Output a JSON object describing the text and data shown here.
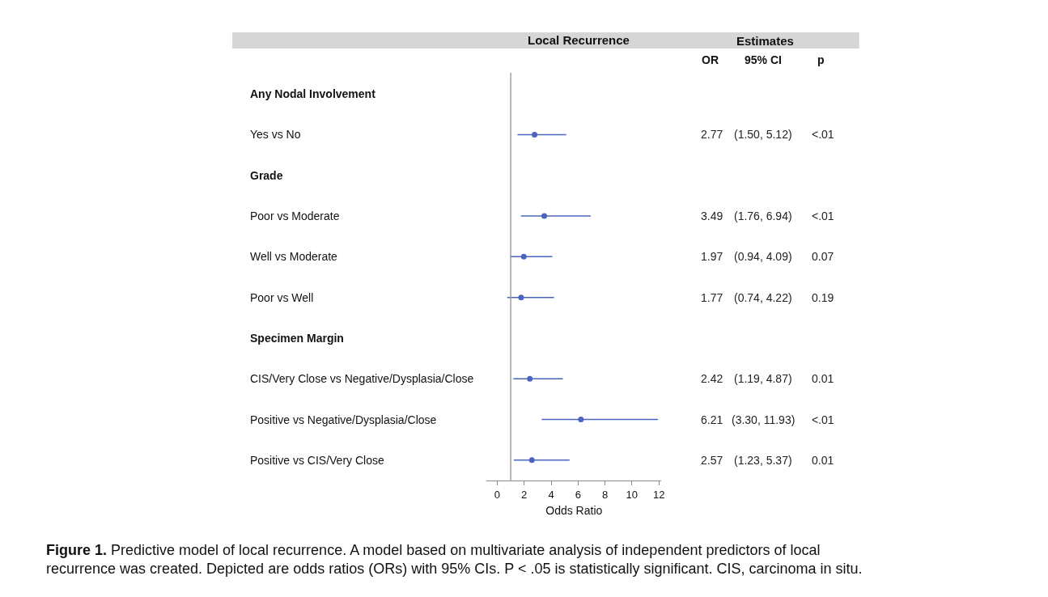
{
  "chart_data": {
    "type": "scatter",
    "orientation": "horizontal",
    "title": "Local Recurrence",
    "xlabel": "Odds Ratio",
    "categories": [
      "Any Nodal Involvement",
      "Yes vs No",
      "Grade",
      "Poor vs Moderate",
      "Well vs Moderate",
      "Poor vs Well",
      "Specimen Margin",
      "CIS/Very Close vs Negative/Dysplasia/Close",
      "Positive vs Negative/Dysplasia/Close",
      "Positive vs CIS/Very Close"
    ],
    "series": [
      {
        "color": "#4a64c0",
        "values": [
          null,
          2.77,
          null,
          3.49,
          1.97,
          1.77,
          null,
          2.42,
          6.21,
          2.57
        ],
        "errors": [
          null,
          [
            1.5,
            5.12
          ],
          null,
          [
            1.76,
            6.94
          ],
          [
            0.94,
            4.09
          ],
          [
            0.74,
            4.22
          ],
          null,
          [
            1.19,
            4.87
          ],
          [
            3.3,
            11.93
          ],
          [
            1.23,
            5.37
          ]
        ]
      }
    ],
    "data_labels": true,
    "marker": "circle",
    "xlim": [
      -0.8,
      12.2
    ],
    "xticks": [
      0,
      2,
      4,
      6,
      8,
      10,
      12
    ],
    "ref_lines": [
      {
        "axis": "x",
        "value": 1,
        "color": "#a0a0a0"
      }
    ],
    "annotations": [
      "Estimates",
      "OR",
      "95% CI",
      "p",
      "(1.50, 5.12)",
      "(1.76, 6.94)",
      "(0.94, 4.09)",
      "(0.74, 4.22)",
      "(1.19, 4.87)",
      "(3.30, 11.93)",
      "(1.23, 5.37)",
      "<.01",
      "<.01",
      "0.07",
      "0.19",
      "0.01",
      "<.01",
      "0.01",
      "Figure 1. Predictive model of local recurrence. A model based on multivariate analysis of independent predictors of local recurrence was created. Depicted are odds ratios (ORs) with 95% CIs. P < .05 is statistically significant. CIS, carcinoma in situ."
    ]
  }
}
